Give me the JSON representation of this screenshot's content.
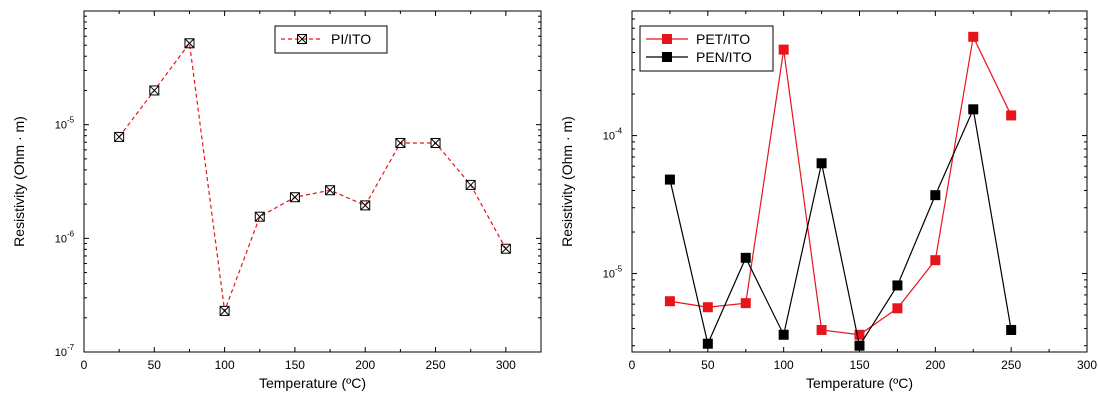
{
  "chart_data": [
    {
      "type": "line",
      "title": "",
      "xlabel": "Temperature (ºC)",
      "ylabel": "Resistivity (Ohm · m)",
      "xlim": [
        0,
        325
      ],
      "ylim": [
        1e-07,
        0.0001
      ],
      "yscale": "log",
      "grid": false,
      "legend_position": "top-center",
      "xticks": [
        0,
        50,
        100,
        150,
        200,
        250,
        300
      ],
      "xtick_labels": [
        "0",
        "50",
        "100",
        "150",
        "200",
        "250",
        "300"
      ],
      "yticks": [
        1e-07,
        1e-06,
        1e-05
      ],
      "ytick_labels": [
        {
          "base": "10",
          "exp": "-7"
        },
        {
          "base": "10",
          "exp": "-6"
        },
        {
          "base": "10",
          "exp": "-5"
        }
      ],
      "series": [
        {
          "name": "PI/ITO",
          "color": "#e8141c",
          "line_style": "dashed",
          "marker": "crossed-square",
          "x": [
            25,
            50,
            75,
            100,
            125,
            150,
            175,
            200,
            225,
            250,
            275,
            300
          ],
          "y": [
            7.8e-06,
            2e-05,
            5.2e-05,
            2.3e-07,
            1.55e-06,
            2.3e-06,
            2.65e-06,
            1.95e-06,
            6.9e-06,
            6.9e-06,
            2.95e-06,
            8.1e-07
          ]
        }
      ]
    },
    {
      "type": "line",
      "title": "",
      "xlabel": "Temperature (ºC)",
      "ylabel": "Resistivity (Ohm · m)",
      "xlim": [
        0,
        300
      ],
      "ylim": [
        2.7e-06,
        0.0008
      ],
      "yscale": "log",
      "grid": false,
      "legend_position": "top-left",
      "xticks": [
        0,
        50,
        100,
        150,
        200,
        250,
        300
      ],
      "xtick_labels": [
        "0",
        "50",
        "100",
        "150",
        "200",
        "250",
        "300"
      ],
      "yticks": [
        1e-05,
        0.0001
      ],
      "ytick_labels": [
        {
          "base": "10",
          "exp": "-5"
        },
        {
          "base": "10",
          "exp": "-4"
        }
      ],
      "series": [
        {
          "name": "PET/ITO",
          "color": "#e8141c",
          "line_style": "solid",
          "marker": "square",
          "x": [
            25,
            50,
            75,
            100,
            125,
            150,
            175,
            200,
            225,
            250
          ],
          "y": [
            6.3e-06,
            5.7e-06,
            6.1e-06,
            0.00042,
            3.9e-06,
            3.6e-06,
            5.6e-06,
            1.25e-05,
            0.00052,
            0.00014
          ]
        },
        {
          "name": "PEN/ITO",
          "color": "#000000",
          "line_style": "solid",
          "marker": "square",
          "x": [
            25,
            50,
            75,
            100,
            125,
            150,
            175,
            200,
            225,
            250
          ],
          "y": [
            4.8e-05,
            3.1e-06,
            1.3e-05,
            3.6e-06,
            6.3e-05,
            3e-06,
            8.2e-06,
            3.7e-05,
            0.000155,
            3.9e-06
          ]
        }
      ]
    }
  ]
}
